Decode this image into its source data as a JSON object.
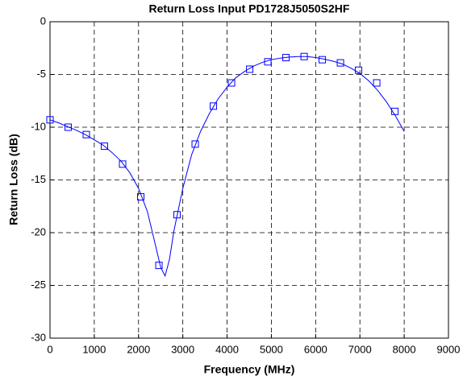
{
  "chart_data": {
    "type": "line",
    "title": "Return Loss Input PD1728J5050S2HF",
    "xlabel": "Frequency (MHz)",
    "ylabel": "Return Loss (dB)",
    "xlim": [
      0,
      9000
    ],
    "xticks": [
      0,
      1000,
      2000,
      3000,
      4000,
      5000,
      6000,
      7000,
      8000,
      9000
    ],
    "ylim": [
      -30,
      0
    ],
    "yticks": [
      -30,
      -25,
      -20,
      -15,
      -10,
      -5,
      0
    ],
    "grid": true,
    "series": [
      {
        "color": "#0000ff",
        "marker": "none",
        "x": [
          0,
          200,
          400,
          600,
          800,
          1000,
          1200,
          1400,
          1600,
          1800,
          2000,
          2200,
          2400,
          2500,
          2600,
          2700,
          2800,
          3000,
          3200,
          3400,
          3600,
          3800,
          4000,
          4200,
          4400,
          4600,
          4800,
          5000,
          5200,
          5400,
          5600,
          5800,
          6000,
          6200,
          6400,
          6600,
          6800,
          7000,
          7200,
          7400,
          7600,
          7800,
          8000
        ],
        "values": [
          -9.3,
          -9.6,
          -9.95,
          -10.3,
          -10.7,
          -11.2,
          -11.7,
          -12.4,
          -13.2,
          -14.3,
          -15.8,
          -18.0,
          -21.5,
          -23.3,
          -24.1,
          -22.5,
          -19.8,
          -15.8,
          -12.6,
          -10.4,
          -8.7,
          -7.3,
          -6.2,
          -5.3,
          -4.7,
          -4.2,
          -3.85,
          -3.6,
          -3.45,
          -3.35,
          -3.3,
          -3.3,
          -3.4,
          -3.55,
          -3.75,
          -4.0,
          -4.4,
          -4.9,
          -5.6,
          -6.5,
          -7.6,
          -8.9,
          -10.4
        ]
      },
      {
        "color": "#0000ff",
        "marker": "square",
        "x": [
          0,
          410,
          820,
          1230,
          1640,
          2050,
          2460,
          2870,
          3280,
          3690,
          4100,
          4510,
          4920,
          5330,
          5740,
          6150,
          6560,
          6970,
          7380,
          7790
        ],
        "values": [
          -9.3,
          -10.0,
          -10.7,
          -11.8,
          -13.5,
          -16.6,
          -23.1,
          -18.3,
          -11.6,
          -8.0,
          -5.8,
          -4.5,
          -3.8,
          -3.4,
          -3.3,
          -3.6,
          -3.9,
          -4.6,
          -5.8,
          -8.5
        ]
      }
    ]
  }
}
